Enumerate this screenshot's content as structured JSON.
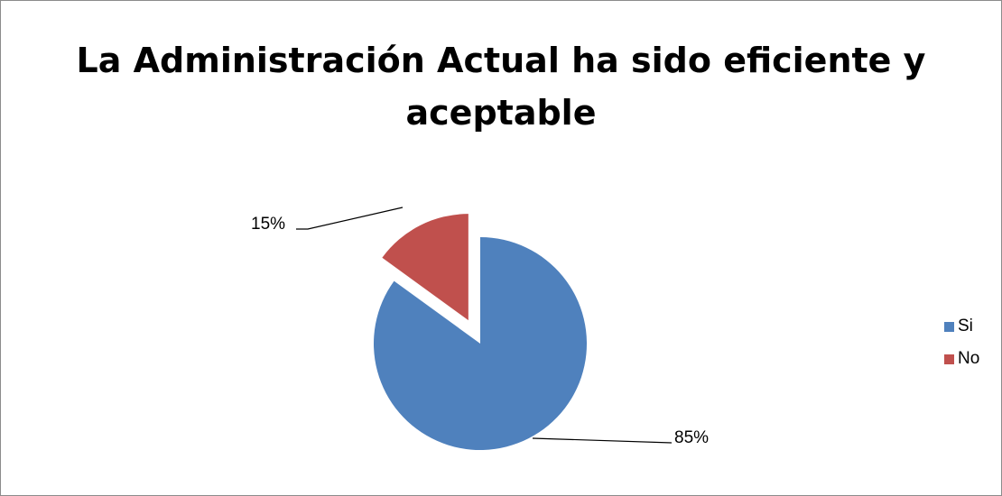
{
  "chart_data": {
    "type": "pie",
    "title_lines": [
      "La Administración Actual ha sido eficiente y",
      "aceptable"
    ],
    "categories": [
      "Si",
      "No"
    ],
    "values": [
      85,
      15
    ],
    "labels": [
      "85%",
      "15%"
    ],
    "colors": [
      "#4F81BD",
      "#C0504D"
    ],
    "exploded": "No",
    "legend_position": "right"
  }
}
